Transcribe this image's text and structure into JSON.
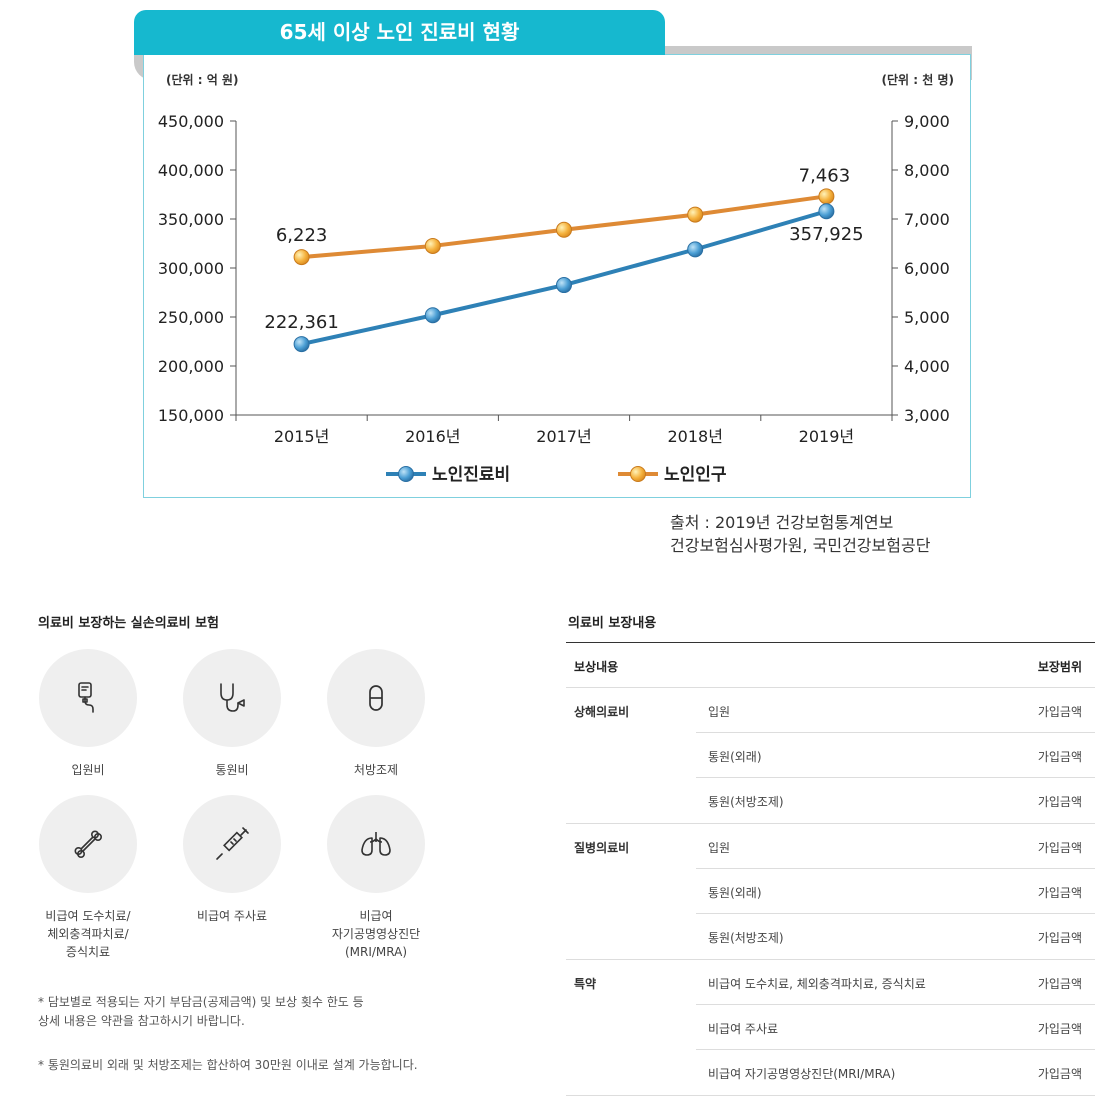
{
  "chart": {
    "title": "65세 이상 노인 진료비 현황",
    "left_unit": "(단위 : 억 원)",
    "right_unit": "(단위 : 천 명)",
    "source_line1": "출처 :  2019년 건강보험통계연보",
    "source_line2": "건강보험심사평가원, 국민건강보험공단"
  },
  "chart_data": {
    "type": "line",
    "x": [
      "2015년",
      "2016년",
      "2017년",
      "2018년",
      "2019년"
    ],
    "series": [
      {
        "name": "노인진료비",
        "axis": "left",
        "color": "#2e81b6",
        "values": [
          222361,
          251800,
          282600,
          319000,
          357925
        ],
        "labels": [
          "222,361",
          "",
          "",
          "",
          "357,925"
        ]
      },
      {
        "name": "노인인구",
        "axis": "right",
        "color": "#de8a35",
        "values": [
          6223,
          6450,
          6780,
          7090,
          7463
        ],
        "labels": [
          "6,223",
          "",
          "",
          "",
          "7,463"
        ]
      }
    ],
    "left_axis": {
      "ylim": [
        150000,
        450000
      ],
      "ticks": [
        "150,000",
        "200,000",
        "250,000",
        "300,000",
        "350,000",
        "400,000",
        "450,000"
      ]
    },
    "right_axis": {
      "ylim": [
        3000,
        9000
      ],
      "ticks": [
        "3,000",
        "4,000",
        "5,000",
        "6,000",
        "7,000",
        "8,000",
        "9,000"
      ]
    },
    "legend_placement": "bottom-center"
  },
  "coverage": {
    "title": "의료비 보장하는 실손의료비 보험",
    "items": [
      {
        "label": "입원비",
        "icon": "iv-bag-icon"
      },
      {
        "label": "통원비",
        "icon": "stethoscope-icon"
      },
      {
        "label": "처방조제",
        "icon": "pill-icon"
      },
      {
        "label": "비급여 도수치료/\n체외충격파치료/\n증식치료",
        "icon": "bone-icon"
      },
      {
        "label": "비급여 주사료",
        "icon": "syringe-icon"
      },
      {
        "label": "비급여\n자기공명영상진단\n(MRI/MRA)",
        "icon": "lungs-icon"
      }
    ],
    "note1": "* 담보별로 적용되는 자기 부담금(공제금액) 및 보상 횟수 한도 등\n   상세 내용은 약관을 참고하시기 바랍니다.",
    "note2": "* 통원의료비 외래 및 처방조제는 합산하여 30만원 이내로 설계 가능합니다."
  },
  "table": {
    "title": "의료비 보장내용",
    "head_left": "보상내용",
    "head_right": "보장범위",
    "groups": [
      {
        "label": "상해의료비",
        "rows": [
          {
            "item": "입원",
            "range": "가입금액"
          },
          {
            "item": "통원(외래)",
            "range": "가입금액"
          },
          {
            "item": "통원(처방조제)",
            "range": "가입금액"
          }
        ]
      },
      {
        "label": "질병의료비",
        "rows": [
          {
            "item": "입원",
            "range": "가입금액"
          },
          {
            "item": "통원(외래)",
            "range": "가입금액"
          },
          {
            "item": "통원(처방조제)",
            "range": "가입금액"
          }
        ]
      },
      {
        "label": "특약",
        "rows": [
          {
            "item": "비급여 도수치료, 체외충격파치료, 증식치료",
            "range": "가입금액"
          },
          {
            "item": "비급여 주사료",
            "range": "가입금액"
          },
          {
            "item": "비급여 자기공명영상진단(MRI/MRA)",
            "range": "가입금액"
          }
        ]
      }
    ]
  }
}
